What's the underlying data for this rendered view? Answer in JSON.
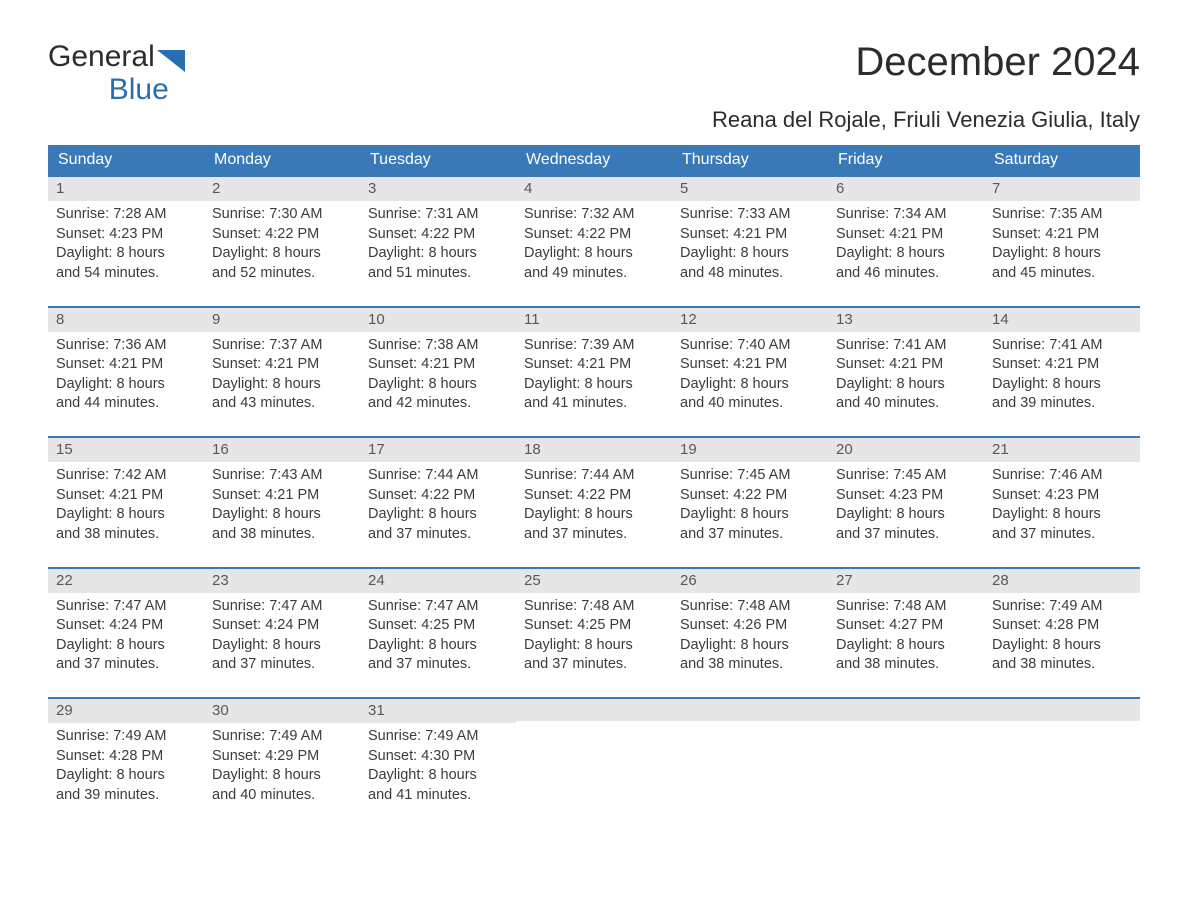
{
  "branding": {
    "logo_word1": "General",
    "logo_word2": "Blue",
    "logo_text_color": "#2c2c2c",
    "logo_blue_color": "#2a6db0"
  },
  "title": "December 2024",
  "location": "Reana del Rojale, Friuli Venezia Giulia, Italy",
  "colors": {
    "header_bg": "#3a79b7",
    "header_text": "#ffffff",
    "daynum_bg": "#e6e6e6",
    "daynum_text": "#585858",
    "body_text": "#3c3c3c",
    "week_border": "#3a79b7",
    "page_bg": "#ffffff"
  },
  "typography": {
    "title_fontsize": 40,
    "location_fontsize": 22,
    "dayheader_fontsize": 16,
    "cell_fontsize": 14.5,
    "font_family": "Arial"
  },
  "day_headers": [
    "Sunday",
    "Monday",
    "Tuesday",
    "Wednesday",
    "Thursday",
    "Friday",
    "Saturday"
  ],
  "weeks": [
    [
      {
        "num": "1",
        "sunrise": "Sunrise: 7:28 AM",
        "sunset": "Sunset: 4:23 PM",
        "day1": "Daylight: 8 hours",
        "day2": "and 54 minutes."
      },
      {
        "num": "2",
        "sunrise": "Sunrise: 7:30 AM",
        "sunset": "Sunset: 4:22 PM",
        "day1": "Daylight: 8 hours",
        "day2": "and 52 minutes."
      },
      {
        "num": "3",
        "sunrise": "Sunrise: 7:31 AM",
        "sunset": "Sunset: 4:22 PM",
        "day1": "Daylight: 8 hours",
        "day2": "and 51 minutes."
      },
      {
        "num": "4",
        "sunrise": "Sunrise: 7:32 AM",
        "sunset": "Sunset: 4:22 PM",
        "day1": "Daylight: 8 hours",
        "day2": "and 49 minutes."
      },
      {
        "num": "5",
        "sunrise": "Sunrise: 7:33 AM",
        "sunset": "Sunset: 4:21 PM",
        "day1": "Daylight: 8 hours",
        "day2": "and 48 minutes."
      },
      {
        "num": "6",
        "sunrise": "Sunrise: 7:34 AM",
        "sunset": "Sunset: 4:21 PM",
        "day1": "Daylight: 8 hours",
        "day2": "and 46 minutes."
      },
      {
        "num": "7",
        "sunrise": "Sunrise: 7:35 AM",
        "sunset": "Sunset: 4:21 PM",
        "day1": "Daylight: 8 hours",
        "day2": "and 45 minutes."
      }
    ],
    [
      {
        "num": "8",
        "sunrise": "Sunrise: 7:36 AM",
        "sunset": "Sunset: 4:21 PM",
        "day1": "Daylight: 8 hours",
        "day2": "and 44 minutes."
      },
      {
        "num": "9",
        "sunrise": "Sunrise: 7:37 AM",
        "sunset": "Sunset: 4:21 PM",
        "day1": "Daylight: 8 hours",
        "day2": "and 43 minutes."
      },
      {
        "num": "10",
        "sunrise": "Sunrise: 7:38 AM",
        "sunset": "Sunset: 4:21 PM",
        "day1": "Daylight: 8 hours",
        "day2": "and 42 minutes."
      },
      {
        "num": "11",
        "sunrise": "Sunrise: 7:39 AM",
        "sunset": "Sunset: 4:21 PM",
        "day1": "Daylight: 8 hours",
        "day2": "and 41 minutes."
      },
      {
        "num": "12",
        "sunrise": "Sunrise: 7:40 AM",
        "sunset": "Sunset: 4:21 PM",
        "day1": "Daylight: 8 hours",
        "day2": "and 40 minutes."
      },
      {
        "num": "13",
        "sunrise": "Sunrise: 7:41 AM",
        "sunset": "Sunset: 4:21 PM",
        "day1": "Daylight: 8 hours",
        "day2": "and 40 minutes."
      },
      {
        "num": "14",
        "sunrise": "Sunrise: 7:41 AM",
        "sunset": "Sunset: 4:21 PM",
        "day1": "Daylight: 8 hours",
        "day2": "and 39 minutes."
      }
    ],
    [
      {
        "num": "15",
        "sunrise": "Sunrise: 7:42 AM",
        "sunset": "Sunset: 4:21 PM",
        "day1": "Daylight: 8 hours",
        "day2": "and 38 minutes."
      },
      {
        "num": "16",
        "sunrise": "Sunrise: 7:43 AM",
        "sunset": "Sunset: 4:21 PM",
        "day1": "Daylight: 8 hours",
        "day2": "and 38 minutes."
      },
      {
        "num": "17",
        "sunrise": "Sunrise: 7:44 AM",
        "sunset": "Sunset: 4:22 PM",
        "day1": "Daylight: 8 hours",
        "day2": "and 37 minutes."
      },
      {
        "num": "18",
        "sunrise": "Sunrise: 7:44 AM",
        "sunset": "Sunset: 4:22 PM",
        "day1": "Daylight: 8 hours",
        "day2": "and 37 minutes."
      },
      {
        "num": "19",
        "sunrise": "Sunrise: 7:45 AM",
        "sunset": "Sunset: 4:22 PM",
        "day1": "Daylight: 8 hours",
        "day2": "and 37 minutes."
      },
      {
        "num": "20",
        "sunrise": "Sunrise: 7:45 AM",
        "sunset": "Sunset: 4:23 PM",
        "day1": "Daylight: 8 hours",
        "day2": "and 37 minutes."
      },
      {
        "num": "21",
        "sunrise": "Sunrise: 7:46 AM",
        "sunset": "Sunset: 4:23 PM",
        "day1": "Daylight: 8 hours",
        "day2": "and 37 minutes."
      }
    ],
    [
      {
        "num": "22",
        "sunrise": "Sunrise: 7:47 AM",
        "sunset": "Sunset: 4:24 PM",
        "day1": "Daylight: 8 hours",
        "day2": "and 37 minutes."
      },
      {
        "num": "23",
        "sunrise": "Sunrise: 7:47 AM",
        "sunset": "Sunset: 4:24 PM",
        "day1": "Daylight: 8 hours",
        "day2": "and 37 minutes."
      },
      {
        "num": "24",
        "sunrise": "Sunrise: 7:47 AM",
        "sunset": "Sunset: 4:25 PM",
        "day1": "Daylight: 8 hours",
        "day2": "and 37 minutes."
      },
      {
        "num": "25",
        "sunrise": "Sunrise: 7:48 AM",
        "sunset": "Sunset: 4:25 PM",
        "day1": "Daylight: 8 hours",
        "day2": "and 37 minutes."
      },
      {
        "num": "26",
        "sunrise": "Sunrise: 7:48 AM",
        "sunset": "Sunset: 4:26 PM",
        "day1": "Daylight: 8 hours",
        "day2": "and 38 minutes."
      },
      {
        "num": "27",
        "sunrise": "Sunrise: 7:48 AM",
        "sunset": "Sunset: 4:27 PM",
        "day1": "Daylight: 8 hours",
        "day2": "and 38 minutes."
      },
      {
        "num": "28",
        "sunrise": "Sunrise: 7:49 AM",
        "sunset": "Sunset: 4:28 PM",
        "day1": "Daylight: 8 hours",
        "day2": "and 38 minutes."
      }
    ],
    [
      {
        "num": "29",
        "sunrise": "Sunrise: 7:49 AM",
        "sunset": "Sunset: 4:28 PM",
        "day1": "Daylight: 8 hours",
        "day2": "and 39 minutes."
      },
      {
        "num": "30",
        "sunrise": "Sunrise: 7:49 AM",
        "sunset": "Sunset: 4:29 PM",
        "day1": "Daylight: 8 hours",
        "day2": "and 40 minutes."
      },
      {
        "num": "31",
        "sunrise": "Sunrise: 7:49 AM",
        "sunset": "Sunset: 4:30 PM",
        "day1": "Daylight: 8 hours",
        "day2": "and 41 minutes."
      },
      null,
      null,
      null,
      null
    ]
  ]
}
